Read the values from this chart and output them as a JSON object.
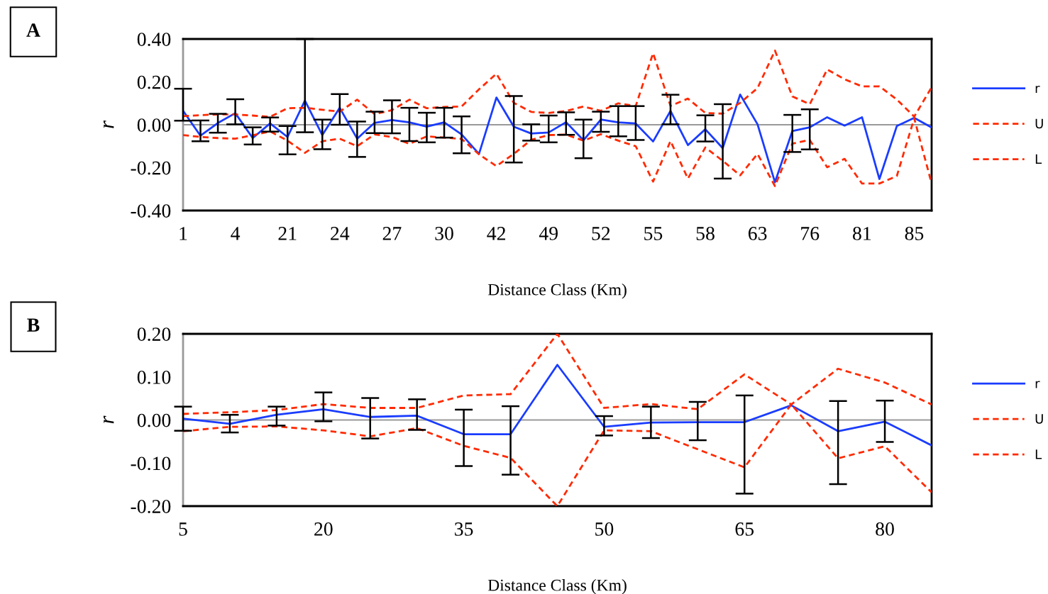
{
  "chart_data": [
    {
      "type": "line",
      "annotations": [
        "A"
      ],
      "xlabel": "Distance Class (Km)",
      "ylabel": "r",
      "categories": [
        "1",
        null,
        null,
        "4",
        null,
        null,
        "21",
        null,
        null,
        "24",
        null,
        null,
        "27",
        null,
        null,
        "30",
        null,
        null,
        "42",
        null,
        null,
        "49",
        null,
        null,
        "52",
        null,
        null,
        "55",
        null,
        null,
        "58",
        null,
        null,
        "63",
        null,
        null,
        "76",
        null,
        null,
        "81",
        null,
        null,
        "85",
        null
      ],
      "series": [
        {
          "name": "r",
          "color": "#1a3cff",
          "line_style": "solid",
          "values": [
            0.065,
            -0.051,
            0.008,
            0.054,
            -0.062,
            0.006,
            -0.057,
            0.113,
            -0.048,
            0.079,
            -0.065,
            0.009,
            0.022,
            0.011,
            -0.009,
            0.011,
            -0.045,
            -0.136,
            0.127,
            -0.009,
            -0.041,
            -0.036,
            0.012,
            -0.072,
            0.024,
            0.011,
            0.006,
            -0.078,
            0.065,
            -0.095,
            -0.021,
            -0.109,
            0.141,
            0.002,
            -0.268,
            -0.029,
            -0.012,
            0.035,
            -0.004,
            0.035,
            -0.253,
            -0.006,
            0.032,
            -0.013
          ],
          "errors": [
            [
              0.019,
              0.168
            ],
            [
              -0.077,
              0.02
            ],
            [
              -0.037,
              0.051
            ],
            [
              0.002,
              0.119
            ],
            [
              -0.092,
              -0.012
            ],
            [
              -0.032,
              0.034
            ],
            [
              -0.138,
              -0.006
            ],
            [
              -0.035,
              0.4
            ],
            [
              -0.114,
              0.024
            ],
            [
              0.0,
              0.143
            ],
            [
              -0.15,
              0.015
            ],
            [
              -0.039,
              0.061
            ],
            [
              -0.04,
              0.114
            ],
            [
              -0.076,
              0.079
            ],
            [
              -0.082,
              0.056
            ],
            [
              -0.06,
              0.079
            ],
            [
              -0.133,
              0.039
            ],
            null,
            null,
            [
              -0.176,
              0.134
            ],
            [
              -0.074,
              0.002
            ],
            [
              -0.082,
              0.043
            ],
            [
              -0.047,
              0.058
            ],
            [
              -0.156,
              0.024
            ],
            [
              -0.033,
              0.061
            ],
            [
              -0.054,
              0.087
            ],
            [
              -0.071,
              0.087
            ],
            null,
            [
              0.002,
              0.14
            ],
            null,
            [
              -0.078,
              0.044
            ],
            [
              -0.251,
              0.096
            ],
            null,
            null,
            null,
            [
              -0.127,
              0.046
            ],
            [
              -0.115,
              0.072
            ],
            null,
            null,
            null,
            null,
            null,
            null,
            null
          ]
        },
        {
          "name": "U",
          "color": "#ff2a00",
          "line_style": "dashed",
          "values": [
            0.04,
            0.045,
            0.048,
            0.048,
            0.043,
            0.037,
            0.077,
            0.079,
            0.07,
            0.061,
            0.117,
            0.05,
            0.068,
            0.117,
            0.077,
            0.083,
            0.085,
            0.165,
            0.238,
            0.102,
            0.06,
            0.055,
            0.064,
            0.085,
            0.065,
            0.1,
            0.087,
            0.334,
            0.088,
            0.122,
            0.055,
            0.052,
            0.102,
            0.171,
            0.346,
            0.132,
            0.096,
            0.258,
            0.212,
            0.179,
            0.179,
            0.118,
            0.038,
            0.175
          ]
        },
        {
          "name": "L",
          "color": "#ff2a00",
          "line_style": "dashed",
          "values": [
            -0.048,
            -0.057,
            -0.062,
            -0.065,
            -0.049,
            -0.031,
            -0.074,
            -0.131,
            -0.077,
            -0.065,
            -0.1,
            -0.045,
            -0.057,
            -0.089,
            -0.054,
            -0.06,
            -0.066,
            -0.138,
            -0.193,
            -0.136,
            -0.07,
            -0.048,
            -0.046,
            -0.074,
            -0.044,
            -0.074,
            -0.1,
            -0.265,
            -0.076,
            -0.251,
            -0.106,
            -0.168,
            -0.236,
            -0.136,
            -0.286,
            -0.088,
            -0.071,
            -0.198,
            -0.159,
            -0.274,
            -0.274,
            -0.239,
            0.03,
            -0.274
          ]
        }
      ],
      "ylim": [
        -0.4,
        0.4
      ],
      "yticks": [
        {
          "value": -0.4,
          "label": "-0.40"
        },
        {
          "value": -0.2,
          "label": "-0.20"
        },
        {
          "value": 0,
          "label": "0.00"
        },
        {
          "value": 0.2,
          "label": "0.20"
        },
        {
          "value": 0.4,
          "label": "0.40"
        }
      ],
      "ref_lines": [
        {
          "axis": "y",
          "value": 0,
          "color": "#999999"
        }
      ],
      "legend": "right",
      "grid": false,
      "marker": "none"
    },
    {
      "type": "line",
      "annotations": [
        "B"
      ],
      "xlabel": "Distance Class (Km)",
      "ylabel": "r",
      "x": [
        5,
        10,
        15,
        20,
        25,
        30,
        35,
        40,
        45,
        50,
        55,
        60,
        65,
        70,
        75,
        80,
        85
      ],
      "series": [
        {
          "name": "r",
          "color": "#1a3cff",
          "line_style": "solid",
          "values": [
            0.003,
            -0.009,
            0.012,
            0.025,
            0.007,
            0.01,
            -0.033,
            -0.033,
            0.128,
            -0.016,
            -0.006,
            -0.005,
            -0.005,
            0.034,
            -0.026,
            -0.004,
            -0.059
          ],
          "errors": [
            [
              -0.025,
              0.031
            ],
            [
              -0.029,
              0.012
            ],
            [
              -0.013,
              0.031
            ],
            [
              -0.003,
              0.064
            ],
            [
              -0.043,
              0.051
            ],
            [
              -0.023,
              0.048
            ],
            [
              -0.107,
              0.024
            ],
            [
              -0.127,
              0.032
            ],
            null,
            [
              -0.036,
              0.009
            ],
            [
              -0.042,
              0.031
            ],
            [
              -0.047,
              0.042
            ],
            [
              -0.171,
              0.057
            ],
            null,
            [
              -0.149,
              0.044
            ],
            [
              -0.051,
              0.045
            ],
            null
          ]
        },
        {
          "name": "U",
          "color": "#ff2a00",
          "line_style": "dashed",
          "values": [
            0.014,
            0.018,
            0.023,
            0.037,
            0.028,
            0.028,
            0.057,
            0.06,
            0.2,
            0.028,
            0.037,
            0.025,
            0.106,
            0.036,
            0.119,
            0.087,
            0.036
          ]
        },
        {
          "name": "L",
          "color": "#ff2a00",
          "line_style": "dashed",
          "values": [
            -0.026,
            -0.016,
            -0.015,
            -0.024,
            -0.038,
            -0.019,
            -0.06,
            -0.088,
            -0.2,
            -0.024,
            -0.026,
            -0.068,
            -0.11,
            0.036,
            -0.089,
            -0.061,
            -0.168
          ]
        }
      ],
      "xlim": [
        5,
        85
      ],
      "xticks": [
        5,
        20,
        35,
        50,
        65,
        80
      ],
      "ylim": [
        -0.2,
        0.2
      ],
      "yticks": [
        {
          "value": -0.2,
          "label": "-0.20"
        },
        {
          "value": -0.1,
          "label": "-0.10"
        },
        {
          "value": 0,
          "label": "0.00"
        },
        {
          "value": 0.1,
          "label": "0.10"
        },
        {
          "value": 0.2,
          "label": "0.20"
        }
      ],
      "ref_lines": [
        {
          "axis": "y",
          "value": 0,
          "color": "#999999"
        }
      ],
      "legend": "right",
      "grid": false,
      "marker": "none"
    }
  ]
}
